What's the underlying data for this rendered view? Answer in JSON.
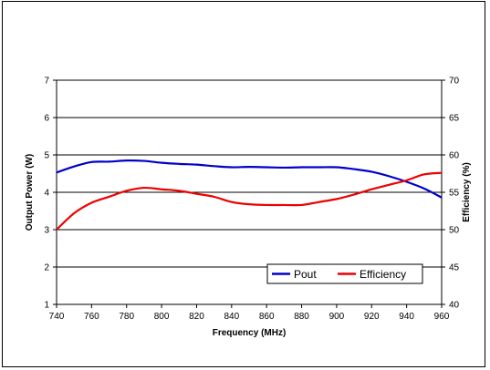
{
  "chart_data": {
    "type": "line",
    "title": "",
    "xlabel": "Frequency (MHz)",
    "ylabel": "Output Power (W)",
    "y2label": "Efficiency (%)",
    "xlim": [
      740,
      960
    ],
    "ylim": [
      1,
      7
    ],
    "y2lim": [
      40,
      70
    ],
    "x_ticks": [
      740,
      760,
      780,
      800,
      820,
      840,
      860,
      880,
      900,
      920,
      940,
      960
    ],
    "y_ticks": [
      1,
      2,
      3,
      4,
      5,
      6,
      7
    ],
    "y2_ticks": [
      40,
      45,
      50,
      55,
      60,
      65,
      70
    ],
    "grid": "horizontal",
    "legend_position": "bottom-right",
    "x": [
      740,
      750,
      760,
      770,
      780,
      790,
      800,
      810,
      820,
      830,
      840,
      850,
      860,
      870,
      880,
      890,
      900,
      910,
      920,
      930,
      940,
      950,
      960
    ],
    "series": [
      {
        "name": "Pout",
        "axis": "left",
        "color": "#0000cc",
        "values": [
          4.53,
          4.69,
          4.81,
          4.82,
          4.85,
          4.84,
          4.79,
          4.76,
          4.74,
          4.7,
          4.67,
          4.68,
          4.67,
          4.66,
          4.67,
          4.67,
          4.67,
          4.62,
          4.55,
          4.43,
          4.28,
          4.1,
          3.86
        ]
      },
      {
        "name": "Efficiency",
        "axis": "right",
        "color": "#ee0000",
        "values": [
          50.0,
          52.2,
          53.6,
          54.4,
          55.2,
          55.6,
          55.4,
          55.2,
          54.8,
          54.4,
          53.7,
          53.4,
          53.3,
          53.3,
          53.3,
          53.7,
          54.1,
          54.7,
          55.4,
          56.0,
          56.6,
          57.4,
          57.6
        ]
      }
    ]
  }
}
